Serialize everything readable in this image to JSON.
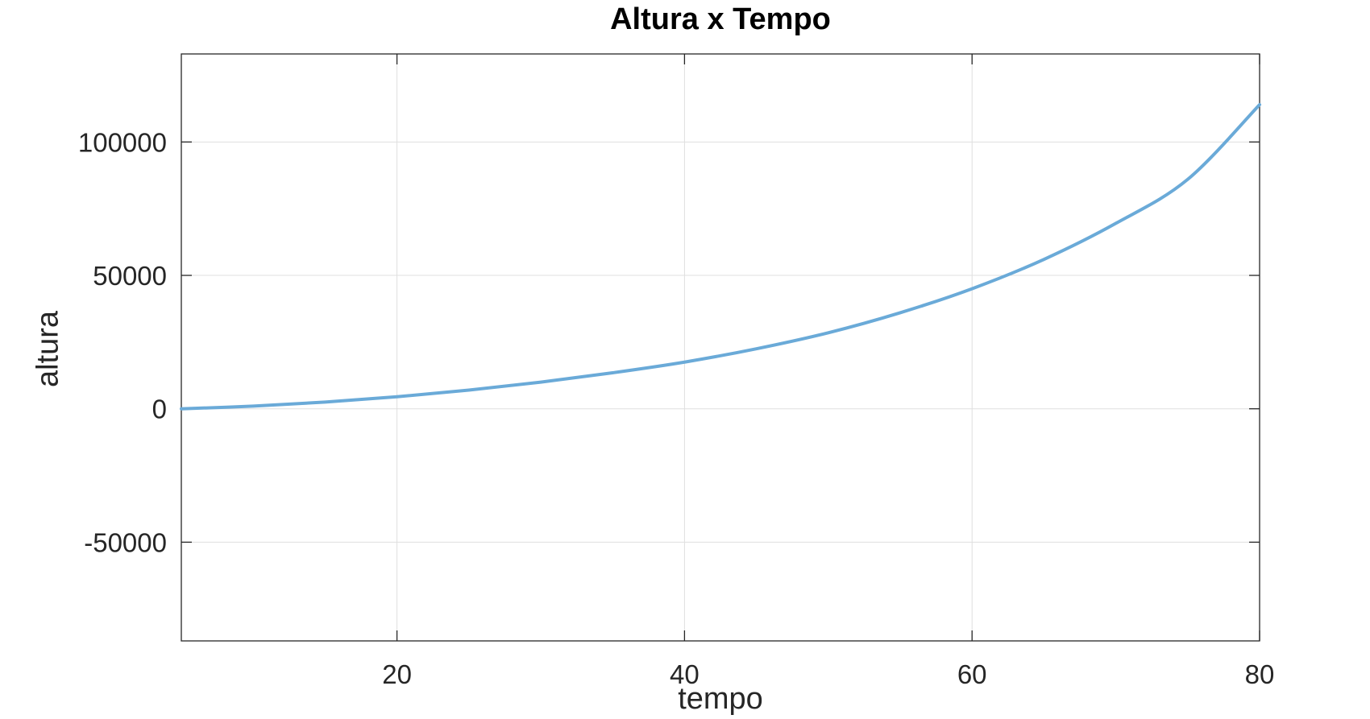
{
  "chart_data": {
    "type": "line",
    "title": "Altura x Tempo",
    "xlabel": "tempo",
    "ylabel": "altura",
    "xlim": [
      5,
      80
    ],
    "ylim": [
      -87000,
      133000
    ],
    "xticks": [
      20,
      40,
      60,
      80
    ],
    "yticks": [
      -50000,
      0,
      50000,
      100000
    ],
    "xtick_labels": [
      "20",
      "40",
      "60",
      "80"
    ],
    "ytick_labels": [
      "-50000",
      "0",
      "50000",
      "100000"
    ],
    "grid": true,
    "series": [
      {
        "color": "#6aaad8",
        "x": [
          5,
          10,
          15,
          20,
          25,
          30,
          35,
          40,
          45,
          50,
          55,
          60,
          65,
          70,
          75,
          80
        ],
        "y": [
          0,
          1000,
          2500,
          4500,
          7000,
          10000,
          13500,
          17500,
          22500,
          28500,
          36000,
          45000,
          56000,
          69500,
          86000,
          114000
        ]
      }
    ],
    "colors": {
      "axis": "#262626",
      "grid": "#dfdfdf",
      "line": "#6aaad8",
      "title": "#000000"
    }
  }
}
